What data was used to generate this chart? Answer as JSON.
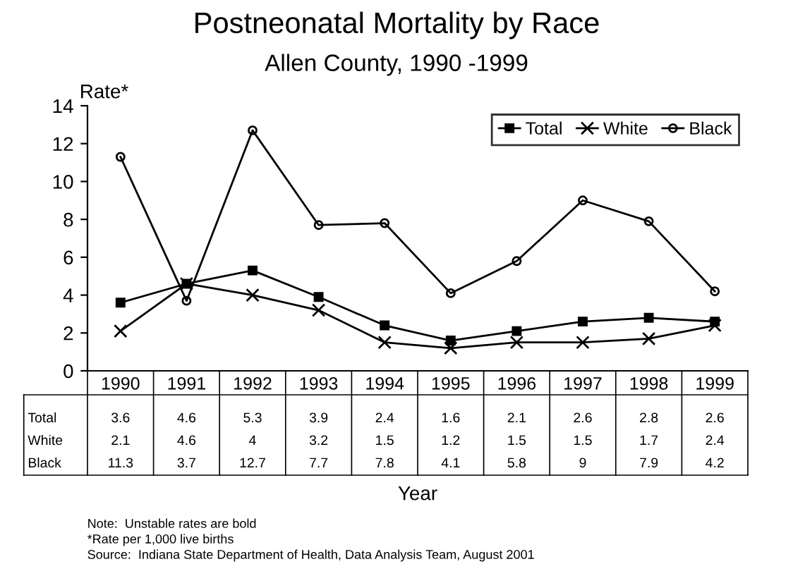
{
  "chart_data": {
    "type": "line",
    "title": "Postneonatal Mortality by Race",
    "subtitle": "Allen County, 1990 -1999",
    "ylabel": "Rate*",
    "xlabel": "Year",
    "categories": [
      "1990",
      "1991",
      "1992",
      "1993",
      "1994",
      "1995",
      "1996",
      "1997",
      "1998",
      "1999"
    ],
    "series": [
      {
        "name": "Total",
        "color": "#000000",
        "marker": "square",
        "values": [
          3.6,
          4.6,
          5.3,
          3.9,
          2.4,
          1.6,
          2.1,
          2.6,
          2.8,
          2.6
        ]
      },
      {
        "name": "White",
        "color": "#000000",
        "marker": "cross",
        "values": [
          2.1,
          4.6,
          4,
          3.2,
          1.5,
          1.2,
          1.5,
          1.5,
          1.7,
          2.4
        ]
      },
      {
        "name": "Black",
        "color": "#000000",
        "marker": "circle",
        "values": [
          11.3,
          3.7,
          12.7,
          7.7,
          7.8,
          4.1,
          5.8,
          9,
          7.9,
          4.2
        ]
      }
    ],
    "ylim": [
      0,
      14
    ],
    "yticks": [
      0,
      2,
      4,
      6,
      8,
      10,
      12,
      14
    ],
    "grid": false,
    "legend": "top right",
    "data_labels": true,
    "line_style": "solid",
    "annotations": [
      "Note:  Unstable rates are bold",
      "*Rate per 1,000 live births",
      "Source:  Indiana State Department of Health, Data Analysis Team, August 2001"
    ]
  }
}
